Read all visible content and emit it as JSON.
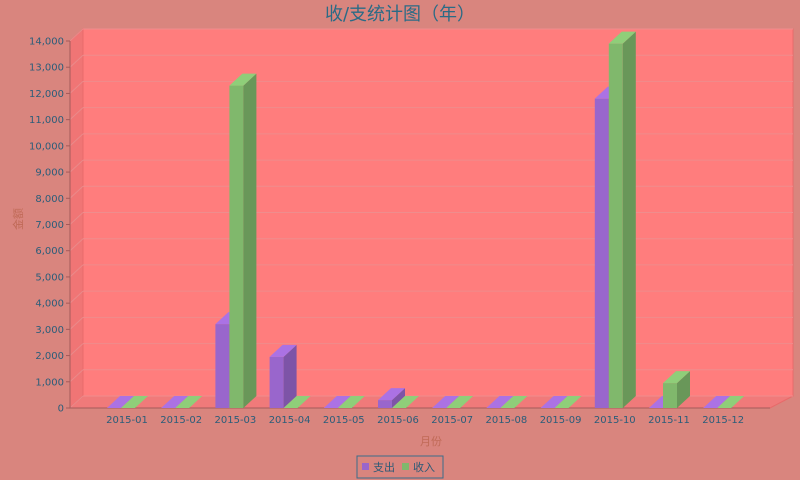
{
  "chart_data": {
    "type": "bar",
    "title": "收/支统计图（年）",
    "xlabel": "月份",
    "ylabel": "金额",
    "ylim": [
      0,
      14000
    ],
    "yticks": [
      0,
      1000,
      2000,
      3000,
      4000,
      5000,
      6000,
      7000,
      8000,
      9000,
      10000,
      11000,
      12000,
      13000,
      14000
    ],
    "ytick_labels": [
      "0",
      "1,000",
      "2,000",
      "3,000",
      "4,000",
      "5,000",
      "6,000",
      "7,000",
      "8,000",
      "9,000",
      "10,000",
      "11,000",
      "12,000",
      "13,000",
      "14,000"
    ],
    "categories": [
      "2015-01",
      "2015-02",
      "2015-03",
      "2015-04",
      "2015-05",
      "2015-06",
      "2015-07",
      "2015-08",
      "2015-09",
      "2015-10",
      "2015-11",
      "2015-12"
    ],
    "series": [
      {
        "name": "支出",
        "color": "#9966cc",
        "values": [
          0,
          0,
          3200,
          1950,
          0,
          300,
          0,
          0,
          0,
          11800,
          0,
          0
        ]
      },
      {
        "name": "收入",
        "color": "#80b86c",
        "values": [
          0,
          0,
          12300,
          0,
          0,
          0,
          0,
          0,
          0,
          13900,
          950,
          0
        ]
      }
    ],
    "grid": true,
    "legend_position": "bottom-center",
    "style": "3d-bar",
    "colors": {
      "background": "#d9857e",
      "plot_background": "#ff7d7d",
      "title": "#2a6b86",
      "tick": "#2a5d7a",
      "axis_label": "#c06a57"
    }
  }
}
